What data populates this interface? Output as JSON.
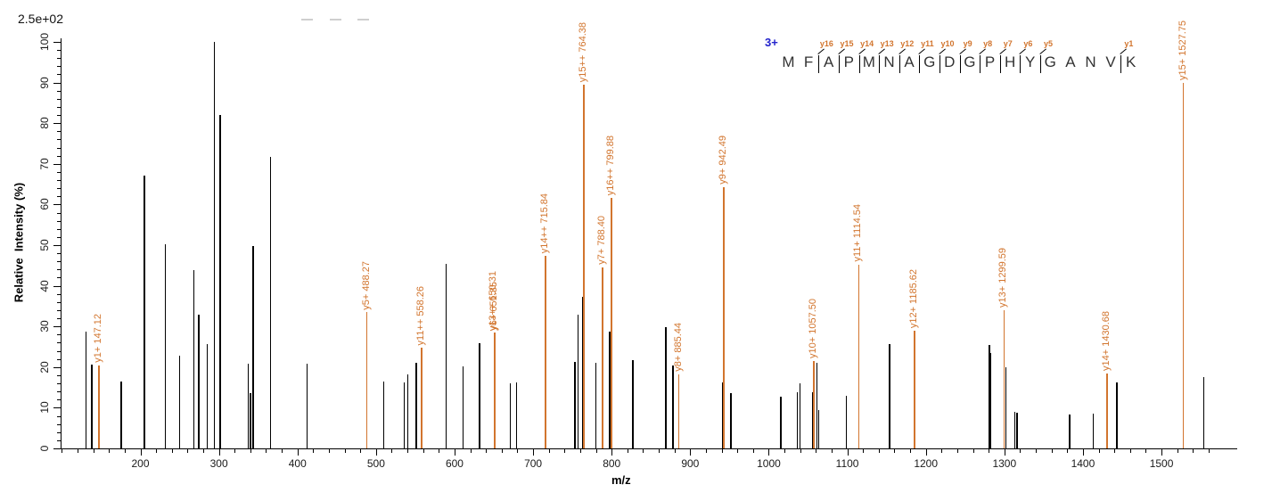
{
  "header": {
    "max_intensity": "2.5e+02"
  },
  "watermark_dashes": {
    "count": 3,
    "x_positions": [
      338,
      370,
      401
    ]
  },
  "peptide": {
    "charge_label": "3+",
    "charge_color": "#2323CC",
    "sequence": [
      "M",
      "F",
      "A",
      "P",
      "M",
      "N",
      "A",
      "G",
      "D",
      "G",
      "P",
      "H",
      "Y",
      "G",
      "A",
      "N",
      "V",
      "K"
    ],
    "fragment_markers": [
      {
        "before_index": 2,
        "label": "y16"
      },
      {
        "before_index": 3,
        "label": "y15"
      },
      {
        "before_index": 4,
        "label": "y14"
      },
      {
        "before_index": 5,
        "label": "y13"
      },
      {
        "before_index": 6,
        "label": "y12"
      },
      {
        "before_index": 7,
        "label": "y11"
      },
      {
        "before_index": 8,
        "label": "y10"
      },
      {
        "before_index": 9,
        "label": "y9"
      },
      {
        "before_index": 10,
        "label": "y8"
      },
      {
        "before_index": 11,
        "label": "y7"
      },
      {
        "before_index": 12,
        "label": "y6"
      },
      {
        "before_index": 13,
        "label": "y5"
      },
      {
        "before_index": 17,
        "label": "y1"
      }
    ]
  },
  "chart_data": {
    "type": "bar",
    "subtype": "ms2-fragmentation-stick-spectrum",
    "title": "",
    "xlabel": "m/z",
    "ylabel": "Relative  Intensity (%)",
    "xlim": [
      100,
      1580
    ],
    "ylim": [
      0,
      100
    ],
    "x_major_ticks": [
      200,
      300,
      400,
      500,
      600,
      700,
      800,
      900,
      1000,
      1100,
      1200,
      1300,
      1400,
      1500
    ],
    "x_minor_step": 20,
    "y_major_ticks": [
      0,
      10,
      20,
      30,
      40,
      50,
      60,
      70,
      80,
      90,
      100
    ],
    "y_minor_step": 2,
    "max_intensity_annotation": "2.5e+02",
    "grid": false,
    "series": [
      {
        "name": "unassigned-peaks",
        "color": "#000000",
        "points": [
          [
            131,
            28.7
          ],
          [
            138,
            20.7
          ],
          [
            175.5,
            16.5
          ],
          [
            205,
            67.2
          ],
          [
            232,
            50.3
          ],
          [
            250,
            22.8
          ],
          [
            268,
            43.8
          ],
          [
            274.5,
            33
          ],
          [
            285,
            25.7
          ],
          [
            294,
            100
          ],
          [
            301.5,
            82
          ],
          [
            337.5,
            20.8
          ],
          [
            340,
            13.5
          ],
          [
            343.5,
            49.8
          ],
          [
            365.5,
            71.8
          ],
          [
            412,
            20.8
          ],
          [
            510,
            16.4
          ],
          [
            536,
            16.3
          ],
          [
            540.5,
            18.3
          ],
          [
            551,
            21
          ],
          [
            589,
            45.5
          ],
          [
            611,
            20.2
          ],
          [
            632,
            25.8
          ],
          [
            671,
            16
          ],
          [
            679,
            16.2
          ],
          [
            753.5,
            21.3
          ],
          [
            757,
            32.8
          ],
          [
            763.5,
            37.3
          ],
          [
            780,
            21
          ],
          [
            797.5,
            28.8
          ],
          [
            827,
            21.8
          ],
          [
            869,
            29.8
          ],
          [
            878,
            20.3
          ],
          [
            941,
            16.3
          ],
          [
            952,
            13.5
          ],
          [
            1015.5,
            12.7
          ],
          [
            1036.5,
            13.8
          ],
          [
            1040,
            16.1
          ],
          [
            1056,
            13.8
          ],
          [
            1061.5,
            21
          ],
          [
            1063.5,
            9.5
          ],
          [
            1099,
            12.9
          ],
          [
            1154,
            25.7
          ],
          [
            1281,
            25.5
          ],
          [
            1282.5,
            23.5
          ],
          [
            1302,
            20
          ],
          [
            1313,
            9
          ],
          [
            1316,
            8.8
          ],
          [
            1383,
            8.3
          ],
          [
            1413,
            8.5
          ],
          [
            1443,
            16.3
          ],
          [
            1554,
            17.5
          ]
        ]
      },
      {
        "name": "y-ion-peaks",
        "color": "#D2752E",
        "points": [
          {
            "mz": 147.12,
            "intensity": 20.5,
            "label": "y1+ 147.12"
          },
          {
            "mz": 488.27,
            "intensity": 33.5,
            "label": "y5+ 488.27"
          },
          {
            "mz": 558.26,
            "intensity": 24.7,
            "label": "y11++ 558.26"
          },
          {
            "mz": 650.31,
            "intensity": 28.2,
            "label": "y13++ 650.31"
          },
          {
            "mz": 651.35,
            "intensity": 28.4,
            "label": "y6+ 651.35"
          },
          {
            "mz": 715.84,
            "intensity": 47.4,
            "label": "y14++ 715.84"
          },
          {
            "mz": 764.38,
            "intensity": 89.5,
            "label": "y15++ 764.38"
          },
          {
            "mz": 788.4,
            "intensity": 44.5,
            "label": "y7+ 788.40"
          },
          {
            "mz": 799.88,
            "intensity": 61.6,
            "label": "y16++ 799.88"
          },
          {
            "mz": 885.44,
            "intensity": 18.2,
            "label": "y8+ 885.44"
          },
          {
            "mz": 942.49,
            "intensity": 64.3,
            "label": "y9+ 942.49"
          },
          {
            "mz": 1057.5,
            "intensity": 21.4,
            "label": "y10+ 1057.50"
          },
          {
            "mz": 1114.54,
            "intensity": 45.2,
            "label": "y11+ 1114.54"
          },
          {
            "mz": 1185.62,
            "intensity": 29.0,
            "label": "y12+ 1185.62"
          },
          {
            "mz": 1299.59,
            "intensity": 34.1,
            "label": "y13+ 1299.59"
          },
          {
            "mz": 1430.68,
            "intensity": 18.5,
            "label": "y14+ 1430.68"
          },
          {
            "mz": 1527.75,
            "intensity": 90.0,
            "label": "y15+ 1527.75"
          }
        ]
      }
    ]
  }
}
